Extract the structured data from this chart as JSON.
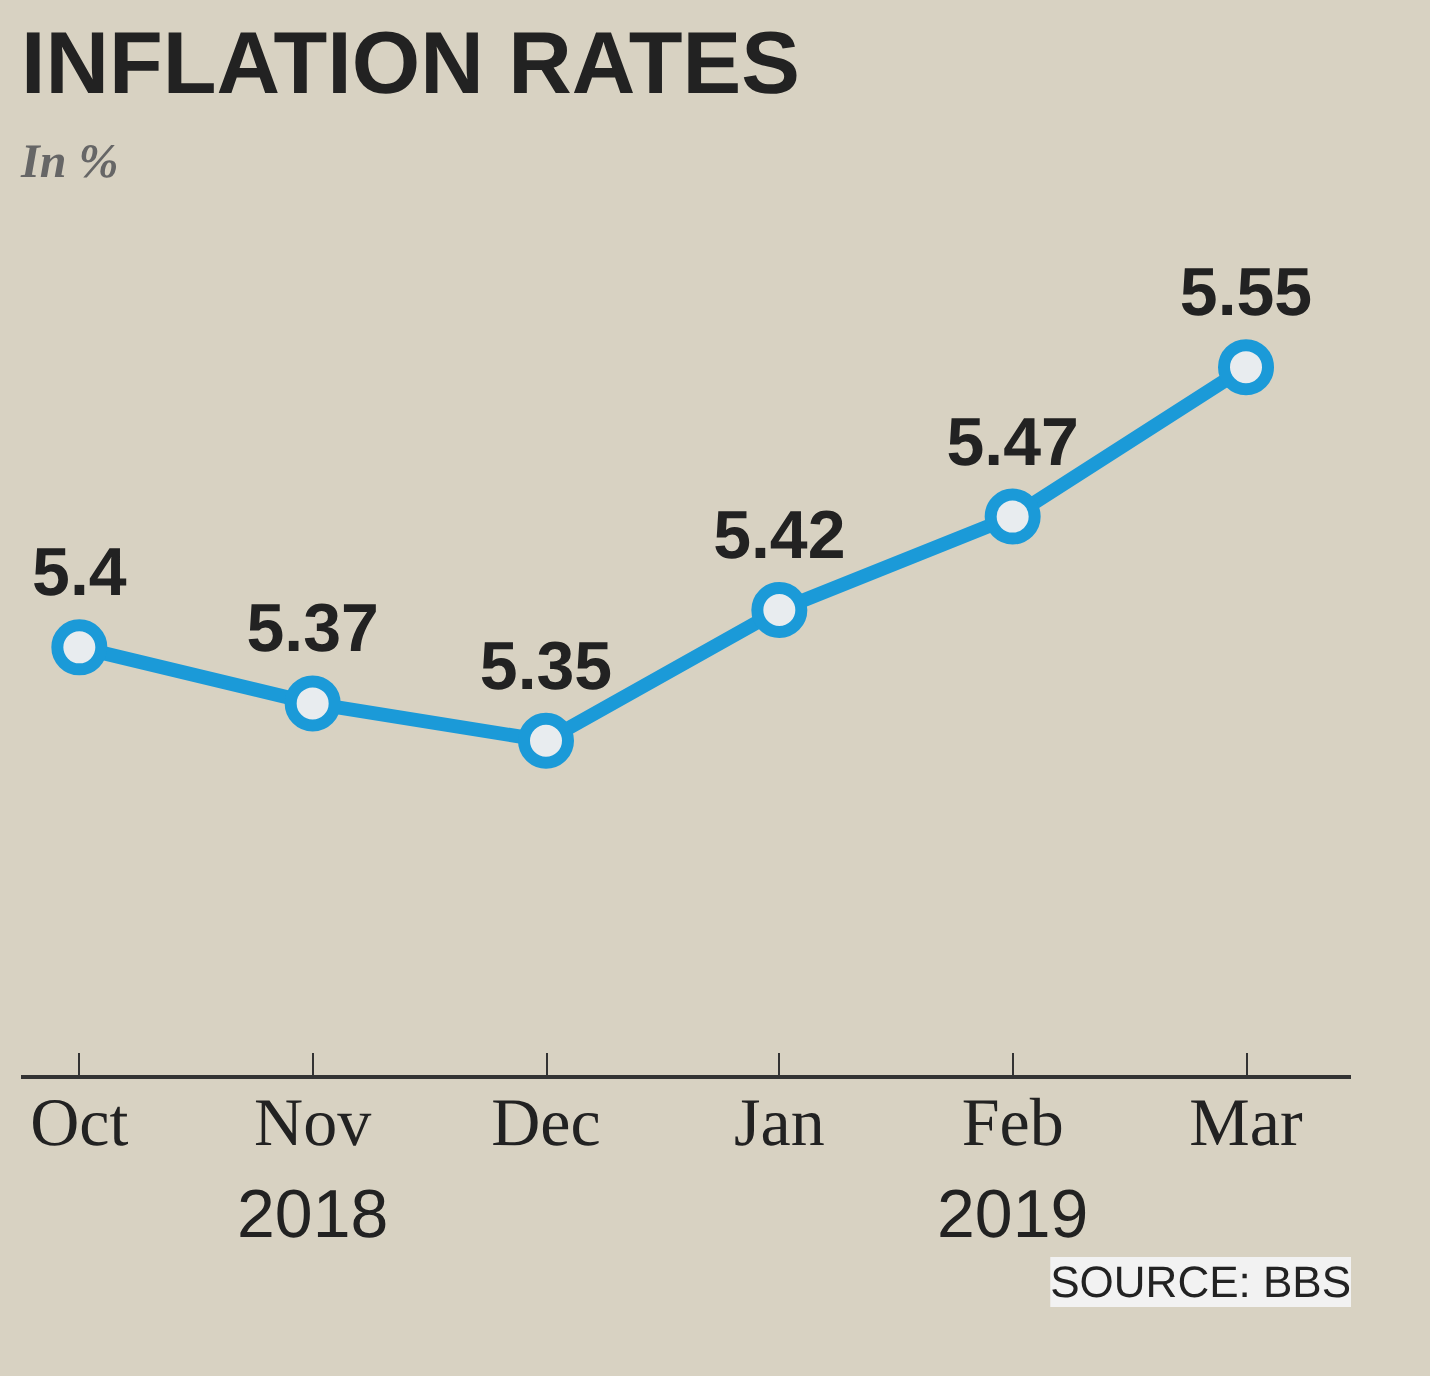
{
  "chart_data": {
    "type": "line",
    "title": "INFLATION RATES",
    "subtitle": "In %",
    "categories": [
      "Oct",
      "Nov",
      "Dec",
      "Jan",
      "Feb",
      "Mar"
    ],
    "series": [
      {
        "color": "#1b9ad8",
        "values": [
          5.4,
          5.37,
          5.35,
          5.42,
          5.47,
          5.55
        ]
      }
    ],
    "data_labels": true,
    "marker": "circle",
    "line_style": "solid",
    "grid": false,
    "annotations": [
      "2018",
      "2019",
      "SOURCE: BBS"
    ]
  }
}
